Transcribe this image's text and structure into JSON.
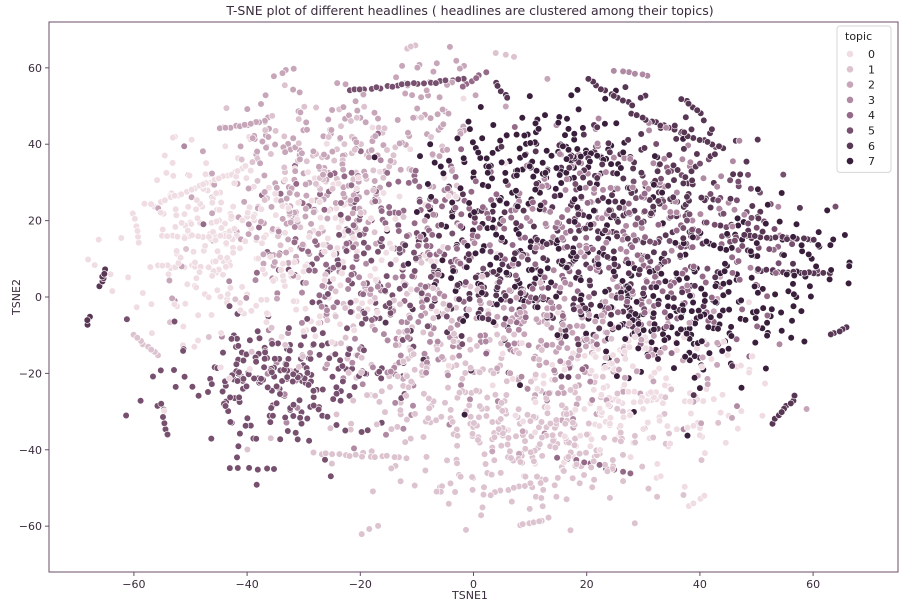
{
  "chart_data": {
    "type": "scatter",
    "title": "T-SNE plot of different headlines ( headlines are clustered among their topics)",
    "xlabel": "TSNE1",
    "ylabel": "TSNE2",
    "xlim": [
      -75,
      75
    ],
    "ylim": [
      -72,
      72
    ],
    "xticks": [
      -60,
      -40,
      -20,
      0,
      20,
      40,
      60
    ],
    "yticks": [
      -60,
      -40,
      -20,
      0,
      20,
      40,
      60
    ],
    "grid": false,
    "legend": {
      "title": "topic",
      "placement": "top-right",
      "labels": [
        "0",
        "1",
        "2",
        "3",
        "4",
        "5",
        "6",
        "7"
      ]
    },
    "hue_palette": [
      "#efdde3",
      "#dcc3cf",
      "#c7a6b9",
      "#b08aa3",
      "#946a88",
      "#76506e",
      "#583754",
      "#3a1f3c"
    ],
    "marker_edge_color": "#ffffff",
    "clusters": [
      {
        "topic": 0,
        "cx": -35,
        "cy": 10,
        "sx": 14,
        "sy": 14,
        "n": 260,
        "seed": 11
      },
      {
        "topic": 0,
        "cx": 28,
        "cy": -25,
        "sx": 10,
        "sy": 9,
        "n": 170,
        "seed": 12
      },
      {
        "topic": 0,
        "cx": -48,
        "cy": 20,
        "sx": 7,
        "sy": 10,
        "n": 70,
        "seed": 13
      },
      {
        "topic": 1,
        "cx": 10,
        "cy": -38,
        "sx": 13,
        "sy": 10,
        "n": 240,
        "seed": 21
      },
      {
        "topic": 1,
        "cx": -10,
        "cy": -15,
        "sx": 14,
        "sy": 12,
        "n": 180,
        "seed": 22
      },
      {
        "topic": 1,
        "cx": -25,
        "cy": 35,
        "sx": 10,
        "sy": 10,
        "n": 90,
        "seed": 23
      },
      {
        "topic": 2,
        "cx": -30,
        "cy": 28,
        "sx": 9,
        "sy": 12,
        "n": 190,
        "seed": 31
      },
      {
        "topic": 2,
        "cx": 18,
        "cy": -12,
        "sx": 14,
        "sy": 10,
        "n": 150,
        "seed": 32
      },
      {
        "topic": 2,
        "cx": -12,
        "cy": 48,
        "sx": 9,
        "sy": 8,
        "n": 80,
        "seed": 33
      },
      {
        "topic": 3,
        "cx": -5,
        "cy": -5,
        "sx": 18,
        "sy": 16,
        "n": 200,
        "seed": 41
      },
      {
        "topic": 3,
        "cx": 25,
        "cy": 25,
        "sx": 12,
        "sy": 10,
        "n": 120,
        "seed": 42
      },
      {
        "topic": 4,
        "cx": -15,
        "cy": 18,
        "sx": 12,
        "sy": 10,
        "n": 170,
        "seed": 51
      },
      {
        "topic": 4,
        "cx": 32,
        "cy": 5,
        "sx": 12,
        "sy": 12,
        "n": 140,
        "seed": 52
      },
      {
        "topic": 5,
        "cx": -35,
        "cy": -22,
        "sx": 10,
        "sy": 8,
        "n": 220,
        "seed": 61
      },
      {
        "topic": 5,
        "cx": -15,
        "cy": 5,
        "sx": 10,
        "sy": 10,
        "n": 100,
        "seed": 62
      },
      {
        "topic": 5,
        "cx": 40,
        "cy": 20,
        "sx": 10,
        "sy": 8,
        "n": 90,
        "seed": 63
      },
      {
        "topic": 6,
        "cx": 30,
        "cy": 30,
        "sx": 12,
        "sy": 10,
        "n": 160,
        "seed": 71
      },
      {
        "topic": 6,
        "cx": 15,
        "cy": 5,
        "sx": 14,
        "sy": 12,
        "n": 180,
        "seed": 72
      },
      {
        "topic": 7,
        "cx": 12,
        "cy": 35,
        "sx": 10,
        "sy": 8,
        "n": 180,
        "seed": 81
      },
      {
        "topic": 7,
        "cx": 35,
        "cy": -5,
        "sx": 12,
        "sy": 10,
        "n": 200,
        "seed": 82
      },
      {
        "topic": 7,
        "cx": 50,
        "cy": 10,
        "sx": 8,
        "sy": 8,
        "n": 80,
        "seed": 83
      },
      {
        "topic": 7,
        "cx": 5,
        "cy": 10,
        "sx": 8,
        "sy": 10,
        "n": 100,
        "seed": 84
      }
    ],
    "strands": [
      {
        "topic": 2,
        "x0": -45,
        "y0": 44,
        "x1": -37,
        "y1": 46,
        "n": 12
      },
      {
        "topic": 0,
        "x0": -55,
        "y0": 25,
        "x1": -40,
        "y1": 34,
        "n": 22
      },
      {
        "topic": 0,
        "x0": -55,
        "y0": 16,
        "x1": -43,
        "y1": 16,
        "n": 14
      },
      {
        "topic": 0,
        "x0": -57,
        "y0": 8,
        "x1": -48,
        "y1": 8,
        "n": 10
      },
      {
        "topic": 0,
        "x0": -60,
        "y0": 22,
        "x1": -59,
        "y1": 14,
        "n": 6
      },
      {
        "topic": 1,
        "x0": -60,
        "y0": -10,
        "x1": -56,
        "y1": -15,
        "n": 8
      },
      {
        "topic": 6,
        "x0": -66,
        "y0": 3,
        "x1": -65,
        "y1": 7,
        "n": 6
      },
      {
        "topic": 6,
        "x0": -68,
        "y0": -5,
        "x1": -68,
        "y1": -7,
        "n": 3
      },
      {
        "topic": 5,
        "x0": -22,
        "y0": 54,
        "x1": -2,
        "y1": 57,
        "n": 22
      },
      {
        "topic": 4,
        "x0": -2,
        "y0": 55,
        "x1": 2,
        "y1": 59,
        "n": 6
      },
      {
        "topic": 6,
        "x0": 6,
        "y0": 52,
        "x1": 4,
        "y1": 56,
        "n": 5
      },
      {
        "topic": 6,
        "x0": 20,
        "y0": 57,
        "x1": 28,
        "y1": 50,
        "n": 10
      },
      {
        "topic": 6,
        "x0": 28,
        "y0": 48,
        "x1": 44,
        "y1": 39,
        "n": 20
      },
      {
        "topic": 6,
        "x0": 37,
        "y0": 52,
        "x1": 40,
        "y1": 48,
        "n": 6
      },
      {
        "topic": 3,
        "x0": 25,
        "y0": 59,
        "x1": 31,
        "y1": 58,
        "n": 6
      },
      {
        "topic": 6,
        "x0": 48,
        "y0": 16,
        "x1": 60,
        "y1": 15,
        "n": 14
      },
      {
        "topic": 6,
        "x0": 50,
        "y0": 7,
        "x1": 63,
        "y1": 6,
        "n": 15
      },
      {
        "topic": 6,
        "x0": 53,
        "y0": -33,
        "x1": 57,
        "y1": -26,
        "n": 9
      },
      {
        "topic": 6,
        "x0": 63,
        "y0": -10,
        "x1": 66,
        "y1": -8,
        "n": 5
      },
      {
        "topic": 1,
        "x0": -28,
        "y0": -41,
        "x1": -12,
        "y1": -42,
        "n": 16
      },
      {
        "topic": 1,
        "x0": 2,
        "y0": -52,
        "x1": 10,
        "y1": -49,
        "n": 9
      },
      {
        "topic": 1,
        "x0": 8,
        "y0": -60,
        "x1": 13,
        "y1": -58,
        "n": 7
      },
      {
        "topic": 1,
        "x0": -20,
        "y0": -62,
        "x1": -17,
        "y1": -60,
        "n": 3
      },
      {
        "topic": 0,
        "x0": 38,
        "y0": -55,
        "x1": 41,
        "y1": -52,
        "n": 4
      },
      {
        "topic": 1,
        "x0": 4,
        "y0": 64,
        "x1": 7,
        "y1": 63,
        "n": 3
      },
      {
        "topic": 1,
        "x0": -12,
        "y0": 65,
        "x1": -10,
        "y1": 66,
        "n": 3
      },
      {
        "topic": 5,
        "x0": -55,
        "y0": -28,
        "x1": -54,
        "y1": -36,
        "n": 6
      },
      {
        "topic": 5,
        "x0": -43,
        "y0": -45,
        "x1": -35,
        "y1": -45,
        "n": 6
      },
      {
        "topic": 2,
        "x0": -35,
        "y0": 58,
        "x1": -32,
        "y1": 60,
        "n": 4
      },
      {
        "topic": 4,
        "x0": 15,
        "y0": -42,
        "x1": 28,
        "y1": -46,
        "n": 10
      }
    ]
  }
}
